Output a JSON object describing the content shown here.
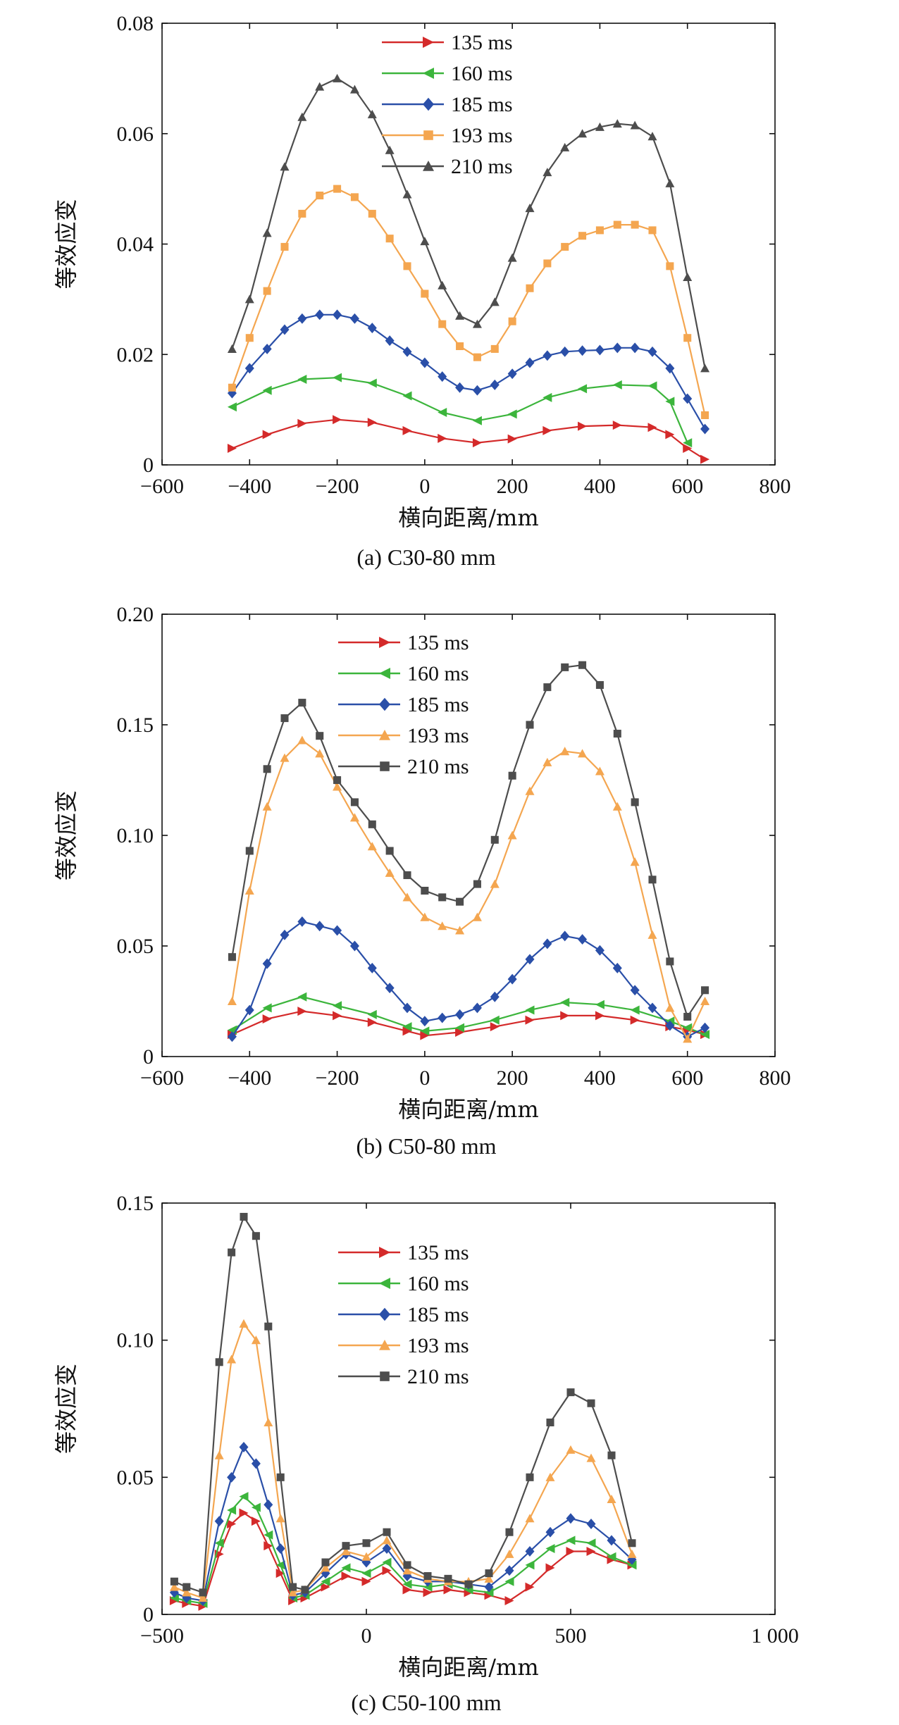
{
  "chart_data": [
    {
      "type": "line",
      "caption": "(a) C30-80 mm",
      "xlabel": "横向距离/mm",
      "ylabel": "等效应变",
      "xlim": [
        -600,
        800
      ],
      "ylim": [
        0,
        0.08
      ],
      "xticks": [
        -600,
        -400,
        -200,
        0,
        200,
        400,
        600,
        800
      ],
      "xtick_labels": [
        "−600",
        "−400",
        "−200",
        "0",
        "200",
        "400",
        "600",
        "800"
      ],
      "yticks": [
        0,
        0.02,
        0.04,
        0.06,
        0.08
      ],
      "ytick_labels": [
        "0",
        "0.02",
        "0.04",
        "0.06",
        "0.08"
      ],
      "grid": false,
      "legend_position": "top-center",
      "series": [
        {
          "name": "135 ms",
          "color": "#d42a2a",
          "marker": "triangle-right",
          "x": [
            -440,
            -360,
            -280,
            -200,
            -120,
            -40,
            40,
            120,
            200,
            280,
            360,
            440,
            520,
            560,
            600,
            640
          ],
          "y": [
            0.003,
            0.0055,
            0.0075,
            0.0082,
            0.0077,
            0.0062,
            0.0048,
            0.004,
            0.0047,
            0.0062,
            0.007,
            0.0072,
            0.0068,
            0.0055,
            0.003,
            0.001
          ]
        },
        {
          "name": "160 ms",
          "color": "#3cb53c",
          "marker": "triangle-left",
          "x": [
            -440,
            -360,
            -280,
            -200,
            -120,
            -40,
            40,
            120,
            200,
            280,
            360,
            440,
            520,
            560,
            600
          ],
          "y": [
            0.0105,
            0.0135,
            0.0155,
            0.0158,
            0.0148,
            0.0125,
            0.0095,
            0.008,
            0.0092,
            0.0122,
            0.0138,
            0.0145,
            0.0143,
            0.0115,
            0.004
          ]
        },
        {
          "name": "185 ms",
          "color": "#2a4fa8",
          "marker": "diamond",
          "x": [
            -440,
            -400,
            -360,
            -320,
            -280,
            -240,
            -200,
            -160,
            -120,
            -80,
            -40,
            0,
            40,
            80,
            120,
            160,
            200,
            240,
            280,
            320,
            360,
            400,
            440,
            480,
            520,
            560,
            600,
            640
          ],
          "y": [
            0.013,
            0.0175,
            0.021,
            0.0245,
            0.0265,
            0.0272,
            0.0272,
            0.0265,
            0.0248,
            0.0225,
            0.0205,
            0.0185,
            0.016,
            0.014,
            0.0135,
            0.0145,
            0.0165,
            0.0185,
            0.0198,
            0.0205,
            0.0207,
            0.0208,
            0.0212,
            0.0212,
            0.0205,
            0.0175,
            0.012,
            0.0065
          ]
        },
        {
          "name": "193 ms",
          "color": "#f4a650",
          "marker": "square",
          "x": [
            -440,
            -400,
            -360,
            -320,
            -280,
            -240,
            -200,
            -160,
            -120,
            -80,
            -40,
            0,
            40,
            80,
            120,
            160,
            200,
            240,
            280,
            320,
            360,
            400,
            440,
            480,
            520,
            560,
            600,
            640
          ],
          "y": [
            0.014,
            0.023,
            0.0315,
            0.0395,
            0.0455,
            0.0488,
            0.05,
            0.0485,
            0.0455,
            0.041,
            0.036,
            0.031,
            0.0255,
            0.0215,
            0.0195,
            0.021,
            0.026,
            0.032,
            0.0365,
            0.0395,
            0.0415,
            0.0425,
            0.0435,
            0.0435,
            0.0425,
            0.036,
            0.023,
            0.009
          ]
        },
        {
          "name": "210 ms",
          "color": "#4d4d4d",
          "marker": "triangle-up",
          "x": [
            -440,
            -400,
            -360,
            -320,
            -280,
            -240,
            -200,
            -160,
            -120,
            -80,
            -40,
            0,
            40,
            80,
            120,
            160,
            200,
            240,
            280,
            320,
            360,
            400,
            440,
            480,
            520,
            560,
            600,
            640
          ],
          "y": [
            0.021,
            0.03,
            0.042,
            0.054,
            0.063,
            0.0685,
            0.07,
            0.068,
            0.0635,
            0.057,
            0.049,
            0.0405,
            0.0325,
            0.027,
            0.0255,
            0.0295,
            0.0375,
            0.0465,
            0.053,
            0.0575,
            0.06,
            0.0612,
            0.0618,
            0.0615,
            0.0595,
            0.051,
            0.034,
            0.0175
          ]
        }
      ]
    },
    {
      "type": "line",
      "caption": "(b) C50-80 mm",
      "xlabel": "横向距离/mm",
      "ylabel": "等效应变",
      "xlim": [
        -600,
        800
      ],
      "ylim": [
        0,
        0.2
      ],
      "xticks": [
        -600,
        -400,
        -200,
        0,
        200,
        400,
        600,
        800
      ],
      "xtick_labels": [
        "−600",
        "−400",
        "−200",
        "0",
        "200",
        "400",
        "600",
        "800"
      ],
      "yticks": [
        0,
        0.05,
        0.1,
        0.15,
        0.2
      ],
      "ytick_labels": [
        "0",
        "0.05",
        "0.10",
        "0.15",
        "0.20"
      ],
      "grid": false,
      "legend_position": "top-center",
      "series": [
        {
          "name": "135 ms",
          "color": "#d42a2a",
          "marker": "triangle-right",
          "x": [
            -440,
            -360,
            -280,
            -200,
            -120,
            -40,
            0,
            80,
            160,
            240,
            320,
            400,
            480,
            560,
            600,
            640
          ],
          "y": [
            0.01,
            0.017,
            0.0205,
            0.0185,
            0.0155,
            0.0115,
            0.0095,
            0.011,
            0.0135,
            0.0165,
            0.0185,
            0.0185,
            0.0165,
            0.0135,
            0.012,
            0.01
          ]
        },
        {
          "name": "160 ms",
          "color": "#3cb53c",
          "marker": "triangle-left",
          "x": [
            -440,
            -360,
            -280,
            -200,
            -120,
            -40,
            0,
            80,
            160,
            240,
            320,
            400,
            480,
            560,
            600,
            640
          ],
          "y": [
            0.012,
            0.022,
            0.027,
            0.023,
            0.019,
            0.0135,
            0.0115,
            0.013,
            0.0165,
            0.021,
            0.0245,
            0.0235,
            0.021,
            0.016,
            0.013,
            0.01
          ]
        },
        {
          "name": "185 ms",
          "color": "#2a4fa8",
          "marker": "diamond",
          "x": [
            -440,
            -400,
            -360,
            -320,
            -280,
            -240,
            -200,
            -160,
            -120,
            -80,
            -40,
            0,
            40,
            80,
            120,
            160,
            200,
            240,
            280,
            320,
            360,
            400,
            440,
            480,
            520,
            560,
            600,
            640
          ],
          "y": [
            0.009,
            0.021,
            0.042,
            0.055,
            0.061,
            0.059,
            0.057,
            0.05,
            0.04,
            0.031,
            0.022,
            0.016,
            0.0175,
            0.019,
            0.022,
            0.027,
            0.035,
            0.044,
            0.051,
            0.0545,
            0.053,
            0.048,
            0.04,
            0.03,
            0.022,
            0.014,
            0.009,
            0.013
          ]
        },
        {
          "name": "193 ms",
          "color": "#f4a650",
          "marker": "triangle-up",
          "x": [
            -440,
            -400,
            -360,
            -320,
            -280,
            -240,
            -200,
            -160,
            -120,
            -80,
            -40,
            0,
            40,
            80,
            120,
            160,
            200,
            240,
            280,
            320,
            360,
            400,
            440,
            480,
            520,
            560,
            600,
            640
          ],
          "y": [
            0.025,
            0.075,
            0.113,
            0.135,
            0.143,
            0.137,
            0.122,
            0.108,
            0.095,
            0.083,
            0.072,
            0.063,
            0.059,
            0.057,
            0.063,
            0.078,
            0.1,
            0.12,
            0.133,
            0.138,
            0.137,
            0.129,
            0.113,
            0.088,
            0.055,
            0.022,
            0.008,
            0.025
          ]
        },
        {
          "name": "210 ms",
          "color": "#4d4d4d",
          "marker": "square",
          "x": [
            -440,
            -400,
            -360,
            -320,
            -280,
            -240,
            -200,
            -160,
            -120,
            -80,
            -40,
            0,
            40,
            80,
            120,
            160,
            200,
            240,
            280,
            320,
            360,
            400,
            440,
            480,
            520,
            560,
            600,
            640
          ],
          "y": [
            0.045,
            0.093,
            0.13,
            0.153,
            0.16,
            0.145,
            0.125,
            0.115,
            0.105,
            0.093,
            0.082,
            0.075,
            0.072,
            0.07,
            0.078,
            0.098,
            0.127,
            0.15,
            0.167,
            0.176,
            0.177,
            0.168,
            0.146,
            0.115,
            0.08,
            0.043,
            0.018,
            0.03
          ]
        }
      ]
    },
    {
      "type": "line",
      "caption": "(c) C50-100 mm",
      "xlabel": "横向距离/mm",
      "ylabel": "等效应变",
      "xlim": [
        -500,
        1000
      ],
      "ylim": [
        0,
        0.15
      ],
      "xticks": [
        -500,
        0,
        500,
        1000
      ],
      "xtick_labels": [
        "−500",
        "0",
        "500",
        "1 000"
      ],
      "yticks": [
        0,
        0.05,
        0.1,
        0.15
      ],
      "ytick_labels": [
        "0",
        "0.05",
        "0.10",
        "0.15"
      ],
      "grid": false,
      "legend_position": "top-center",
      "series": [
        {
          "name": "135 ms",
          "color": "#d42a2a",
          "marker": "triangle-right",
          "x": [
            -470,
            -440,
            -400,
            -360,
            -330,
            -300,
            -270,
            -240,
            -210,
            -180,
            -150,
            -100,
            -50,
            0,
            50,
            100,
            150,
            200,
            250,
            300,
            350,
            400,
            450,
            500,
            550,
            600,
            650
          ],
          "y": [
            0.005,
            0.004,
            0.003,
            0.022,
            0.033,
            0.037,
            0.034,
            0.025,
            0.015,
            0.005,
            0.006,
            0.01,
            0.014,
            0.012,
            0.016,
            0.009,
            0.008,
            0.009,
            0.008,
            0.007,
            0.005,
            0.01,
            0.017,
            0.023,
            0.023,
            0.02,
            0.018
          ]
        },
        {
          "name": "160 ms",
          "color": "#3cb53c",
          "marker": "triangle-left",
          "x": [
            -470,
            -440,
            -400,
            -360,
            -330,
            -300,
            -270,
            -240,
            -210,
            -180,
            -150,
            -100,
            -50,
            0,
            50,
            100,
            150,
            200,
            250,
            300,
            350,
            400,
            450,
            500,
            550,
            600,
            650
          ],
          "y": [
            0.006,
            0.005,
            0.004,
            0.026,
            0.038,
            0.043,
            0.039,
            0.029,
            0.018,
            0.006,
            0.007,
            0.012,
            0.017,
            0.015,
            0.019,
            0.011,
            0.01,
            0.011,
            0.009,
            0.008,
            0.012,
            0.018,
            0.024,
            0.027,
            0.026,
            0.021,
            0.018
          ]
        },
        {
          "name": "185 ms",
          "color": "#2a4fa8",
          "marker": "diamond",
          "x": [
            -470,
            -440,
            -400,
            -360,
            -330,
            -300,
            -270,
            -240,
            -210,
            -180,
            -150,
            -100,
            -50,
            0,
            50,
            100,
            150,
            200,
            250,
            300,
            350,
            400,
            450,
            500,
            550,
            600,
            650
          ],
          "y": [
            0.008,
            0.006,
            0.005,
            0.034,
            0.05,
            0.061,
            0.055,
            0.04,
            0.024,
            0.007,
            0.008,
            0.015,
            0.022,
            0.019,
            0.024,
            0.014,
            0.012,
            0.012,
            0.011,
            0.01,
            0.016,
            0.023,
            0.03,
            0.035,
            0.033,
            0.027,
            0.02
          ]
        },
        {
          "name": "193 ms",
          "color": "#f4a650",
          "marker": "triangle-up",
          "x": [
            -470,
            -440,
            -400,
            -360,
            -330,
            -300,
            -270,
            -240,
            -210,
            -180,
            -150,
            -100,
            -50,
            0,
            50,
            100,
            150,
            200,
            250,
            300,
            350,
            400,
            450,
            500,
            550,
            600,
            650
          ],
          "y": [
            0.01,
            0.008,
            0.006,
            0.058,
            0.093,
            0.106,
            0.1,
            0.07,
            0.035,
            0.008,
            0.009,
            0.017,
            0.023,
            0.021,
            0.027,
            0.016,
            0.013,
            0.012,
            0.012,
            0.013,
            0.022,
            0.035,
            0.05,
            0.06,
            0.057,
            0.042,
            0.022
          ]
        },
        {
          "name": "210 ms",
          "color": "#4d4d4d",
          "marker": "square",
          "x": [
            -470,
            -440,
            -400,
            -360,
            -330,
            -300,
            -270,
            -240,
            -210,
            -180,
            -150,
            -100,
            -50,
            0,
            50,
            100,
            150,
            200,
            250,
            300,
            350,
            400,
            450,
            500,
            550,
            600,
            650
          ],
          "y": [
            0.012,
            0.01,
            0.008,
            0.092,
            0.132,
            0.145,
            0.138,
            0.105,
            0.05,
            0.01,
            0.009,
            0.019,
            0.025,
            0.026,
            0.03,
            0.018,
            0.014,
            0.013,
            0.011,
            0.015,
            0.03,
            0.05,
            0.07,
            0.081,
            0.077,
            0.058,
            0.026
          ]
        }
      ]
    }
  ]
}
